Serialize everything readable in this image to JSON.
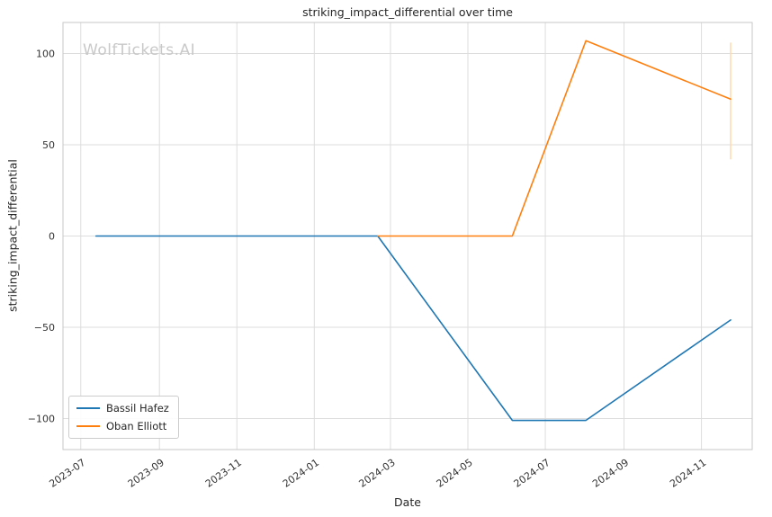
{
  "watermark": "WolfTickets.AI",
  "chart_data": {
    "type": "line",
    "title": "striking_impact_differential over time",
    "xlabel": "Date",
    "ylabel": "striking_impact_differential",
    "x_ticks": [
      "2023-07",
      "2023-09",
      "2023-11",
      "2024-01",
      "2024-03",
      "2024-05",
      "2024-07",
      "2024-09",
      "2024-11"
    ],
    "y_ticks": [
      -100,
      -50,
      0,
      50,
      100
    ],
    "x_domain": [
      "2023-06-17",
      "2024-12-11"
    ],
    "y_domain": [
      -117,
      117
    ],
    "grid": true,
    "legend_position": "lower left",
    "series": [
      {
        "name": "Bassil Hafez",
        "color": "#1f77b4",
        "points": [
          [
            "2023-07-13",
            0
          ],
          [
            "2024-02-20",
            0
          ],
          [
            "2024-06-05",
            -101
          ],
          [
            "2024-08-02",
            -101
          ],
          [
            "2024-11-24",
            -46
          ]
        ]
      },
      {
        "name": "Oban Elliott",
        "color": "#ff7f0e",
        "points": [
          [
            "2024-02-20",
            0
          ],
          [
            "2024-06-05",
            0
          ],
          [
            "2024-08-02",
            107
          ],
          [
            "2024-11-24",
            75
          ]
        ]
      }
    ],
    "annotations": [
      {
        "type": "vertical-span",
        "date": "2024-11-24",
        "y1": 42,
        "y2": 106,
        "color": "#ffd9b0"
      }
    ]
  }
}
